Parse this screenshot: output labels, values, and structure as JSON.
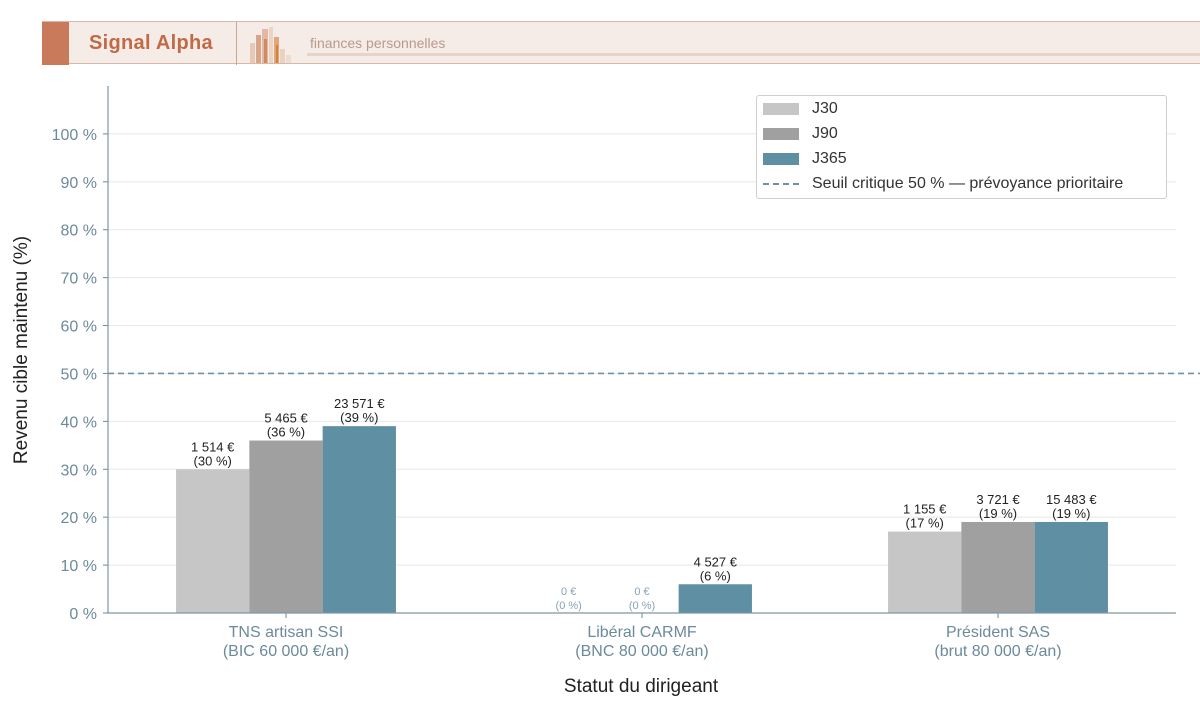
{
  "header": {
    "brand_name": "Signal Alpha",
    "tagline": "finances personnelles"
  },
  "colors": {
    "brand_accent": "#c97a5a",
    "J30": "#c6c6c6",
    "J90": "#a0a0a0",
    "J365": "#5e8fa2",
    "threshold": "#7090a8",
    "axis_text": "#6b8a9c"
  },
  "chart_data": {
    "type": "bar",
    "xlabel": "Statut du dirigeant",
    "ylabel": "Revenu cible maintenu (%)",
    "ylim": [
      0,
      110
    ],
    "yticks": [
      0,
      10,
      20,
      30,
      40,
      50,
      60,
      70,
      80,
      90,
      100
    ],
    "ytick_suffix": " %",
    "grid": "horizontal",
    "legend_position": "top-right",
    "categories": [
      [
        "TNS artisan SSI",
        "(BIC 60 000 €/an)"
      ],
      [
        "Libéral CARMF",
        "(BNC 80 000 €/an)"
      ],
      [
        "Président SAS",
        "(brut 80 000 €/an)"
      ]
    ],
    "series": [
      {
        "name": "J30",
        "values": [
          30,
          0,
          17
        ],
        "labels": [
          [
            "1 514 €",
            "(30 %)"
          ],
          [
            "0 €",
            "(0 %)"
          ],
          [
            "1 155 €",
            "(17 %)"
          ]
        ]
      },
      {
        "name": "J90",
        "values": [
          36,
          0,
          19
        ],
        "labels": [
          [
            "5 465 €",
            "(36 %)"
          ],
          [
            "0 €",
            "(0 %)"
          ],
          [
            "3 721 €",
            "(19 %)"
          ]
        ]
      },
      {
        "name": "J365",
        "values": [
          39,
          6,
          19
        ],
        "labels": [
          [
            "23 571 €",
            "(39 %)"
          ],
          [
            "4 527 €",
            "(6 %)"
          ],
          [
            "15 483 €",
            "(19 %)"
          ]
        ]
      }
    ],
    "threshold": {
      "value": 50,
      "label": "Seuil critique 50 % — prévoyance prioritaire"
    }
  }
}
